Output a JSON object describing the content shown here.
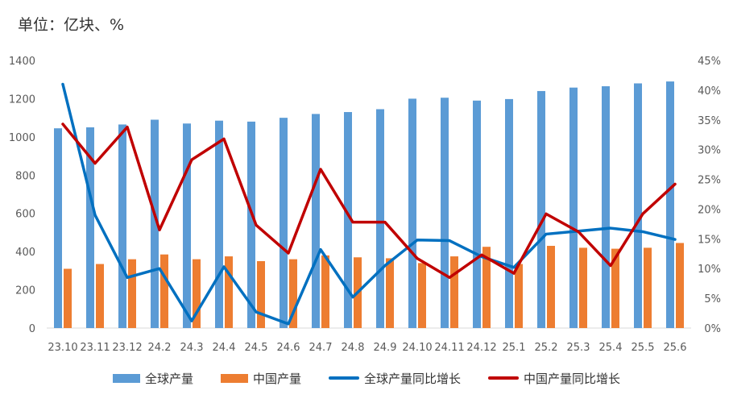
{
  "unit_label": "单位：亿块、%",
  "colors": {
    "global_output": "#5B9BD5",
    "china_output": "#ED7D31",
    "global_yoy": "#0070C0",
    "china_yoy": "#C00000",
    "axis": "#D9D9D9",
    "tick_text": "#595959"
  },
  "chart_data": {
    "type": "bar",
    "categories": [
      "23.10",
      "23.11",
      "23.12",
      "24.2",
      "24.3",
      "24.4",
      "24.5",
      "24.6",
      "24.7",
      "24.8",
      "24.9",
      "24.10",
      "24.11",
      "24.12",
      "25.1",
      "25.2",
      "25.3",
      "25.4",
      "25.5",
      "25.6"
    ],
    "series": [
      {
        "name": "全球产量",
        "type": "bar",
        "axis": "left",
        "values": [
          1045,
          1050,
          1065,
          1090,
          1070,
          1085,
          1080,
          1100,
          1120,
          1130,
          1145,
          1200,
          1205,
          1190,
          1198,
          1240,
          1258,
          1265,
          1280,
          1290
        ]
      },
      {
        "name": "中国产量",
        "type": "bar",
        "axis": "left",
        "values": [
          310,
          335,
          360,
          385,
          360,
          375,
          350,
          360,
          380,
          370,
          365,
          340,
          375,
          425,
          335,
          430,
          420,
          415,
          420,
          445
        ]
      },
      {
        "name": "全球产量同比增长",
        "type": "line",
        "axis": "right",
        "values": [
          41.0,
          19.0,
          8.5,
          10.0,
          1.2,
          10.3,
          2.7,
          0.7,
          13.2,
          5.2,
          10.5,
          14.8,
          14.7,
          12.0,
          10.2,
          15.8,
          16.3,
          16.8,
          16.2,
          14.9
        ]
      },
      {
        "name": "中国产量同比增长",
        "type": "line",
        "axis": "right",
        "values": [
          34.3,
          27.7,
          33.8,
          16.5,
          28.3,
          31.8,
          17.3,
          12.6,
          26.7,
          17.8,
          17.8,
          11.7,
          8.5,
          12.3,
          9.2,
          19.2,
          16.2,
          10.5,
          19.2,
          24.2
        ]
      }
    ],
    "ylim_left": [
      0,
      1400
    ],
    "yticks_left": [
      "0",
      "200",
      "400",
      "600",
      "800",
      "1000",
      "1200",
      "1400"
    ],
    "ylim_right": [
      0,
      45
    ],
    "yticks_right": [
      "0%",
      "5%",
      "10%",
      "15%",
      "20%",
      "25%",
      "30%",
      "35%",
      "40%",
      "45%"
    ],
    "grid": false,
    "legend_position": "bottom"
  },
  "legend": {
    "global_output": "全球产量",
    "china_output": "中国产量",
    "global_yoy": "全球产量同比增长",
    "china_yoy": "中国产量同比增长"
  }
}
